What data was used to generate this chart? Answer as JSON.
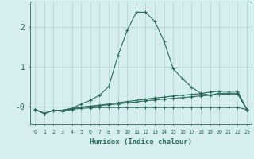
{
  "xlabel": "Humidex (Indice chaleur)",
  "x": [
    0,
    1,
    2,
    3,
    4,
    5,
    6,
    7,
    8,
    9,
    10,
    11,
    12,
    13,
    14,
    15,
    16,
    17,
    18,
    19,
    20,
    21,
    22,
    23
  ],
  "line1": [
    -0.08,
    -0.18,
    -0.1,
    -0.13,
    -0.08,
    -0.05,
    -0.04,
    -0.03,
    -0.03,
    -0.03,
    -0.03,
    -0.03,
    -0.03,
    -0.03,
    -0.03,
    -0.03,
    -0.03,
    -0.03,
    -0.03,
    -0.03,
    -0.03,
    -0.03,
    -0.03,
    -0.08
  ],
  "line2": [
    -0.08,
    -0.18,
    -0.1,
    -0.1,
    -0.05,
    0.06,
    0.15,
    0.28,
    0.5,
    1.28,
    1.92,
    2.38,
    2.38,
    2.15,
    1.65,
    0.95,
    0.7,
    0.48,
    0.33,
    0.28,
    0.33,
    0.33,
    0.33,
    -0.08
  ],
  "line3": [
    -0.08,
    -0.18,
    -0.1,
    -0.1,
    -0.06,
    -0.02,
    0.0,
    0.03,
    0.06,
    0.09,
    0.12,
    0.15,
    0.18,
    0.21,
    0.23,
    0.26,
    0.28,
    0.3,
    0.32,
    0.36,
    0.38,
    0.38,
    0.38,
    -0.08
  ],
  "line4": [
    -0.08,
    -0.18,
    -0.1,
    -0.1,
    -0.06,
    -0.02,
    0.0,
    0.02,
    0.04,
    0.06,
    0.09,
    0.11,
    0.14,
    0.16,
    0.18,
    0.2,
    0.22,
    0.24,
    0.26,
    0.28,
    0.3,
    0.31,
    0.31,
    -0.08
  ],
  "bg_color": "#d6eef0",
  "grid_color": "#b0cdd0",
  "line_color": "#2a6b5a",
  "yticks": [
    0,
    1,
    2
  ],
  "ytick_labels": [
    "-0",
    "1",
    "2"
  ],
  "ylim": [
    -0.45,
    2.65
  ],
  "xlim": [
    -0.5,
    23.5
  ]
}
